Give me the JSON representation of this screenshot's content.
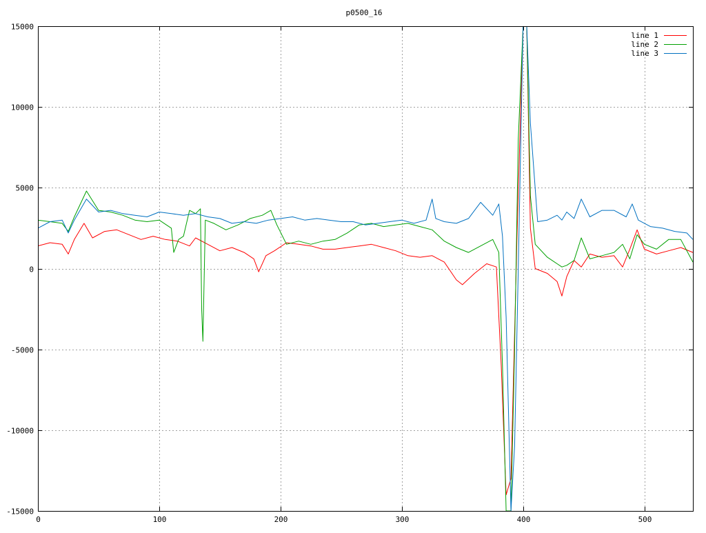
{
  "chart_data": {
    "type": "line",
    "title": "p0500_16",
    "xlabel": "",
    "ylabel": "",
    "xlim": [
      0,
      540
    ],
    "ylim": [
      -15000,
      15000
    ],
    "xticks": [
      "0",
      "100",
      "200",
      "300",
      "400",
      "500"
    ],
    "yticks": [
      "15000",
      "10000",
      "5000",
      "0",
      "-5000",
      "-10000",
      "-15000"
    ],
    "grid": true,
    "legend_position": "top-right",
    "series": [
      {
        "name": "line 1",
        "color": "#ff0000",
        "x": [
          0,
          10,
          20,
          25,
          30,
          38,
          45,
          55,
          65,
          75,
          85,
          95,
          105,
          115,
          125,
          130,
          140,
          150,
          160,
          170,
          178,
          182,
          188,
          195,
          205,
          215,
          225,
          235,
          245,
          255,
          265,
          275,
          285,
          295,
          305,
          315,
          325,
          335,
          345,
          350,
          360,
          370,
          378,
          382,
          386,
          390,
          395,
          400,
          403,
          406,
          410,
          420,
          428,
          432,
          436,
          442,
          448,
          455,
          465,
          475,
          482,
          488,
          494,
          500,
          510,
          520,
          530,
          540
        ],
        "y": [
          1400,
          1600,
          1500,
          900,
          1800,
          2800,
          1900,
          2300,
          2400,
          2100,
          1800,
          2000,
          1800,
          1700,
          1400,
          1900,
          1500,
          1100,
          1300,
          1000,
          600,
          -200,
          800,
          1100,
          1600,
          1500,
          1400,
          1200,
          1200,
          1300,
          1400,
          1500,
          1300,
          1100,
          800,
          700,
          800,
          400,
          -700,
          -1000,
          -300,
          300,
          100,
          -6000,
          -14000,
          -13000,
          2000,
          15000,
          15000,
          2500,
          0,
          -300,
          -800,
          -1700,
          -500,
          500,
          100,
          900,
          700,
          800,
          100,
          1200,
          2400,
          1200,
          900,
          1100,
          1300,
          1000
        ]
      },
      {
        "name": "line 2",
        "color": "#00a000",
        "x": [
          0,
          10,
          20,
          25,
          30,
          40,
          50,
          60,
          70,
          80,
          90,
          100,
          110,
          112,
          116,
          120,
          125,
          130,
          134,
          135,
          136,
          138,
          145,
          155,
          165,
          175,
          185,
          192,
          197,
          205,
          215,
          225,
          235,
          245,
          255,
          265,
          275,
          285,
          295,
          305,
          315,
          325,
          335,
          345,
          355,
          365,
          375,
          380,
          383,
          386,
          390,
          393,
          396,
          400,
          403,
          406,
          410,
          420,
          428,
          432,
          436,
          442,
          448,
          455,
          465,
          475,
          482,
          488,
          494,
          500,
          510,
          520,
          530,
          540
        ],
        "y": [
          3000,
          2900,
          2800,
          2300,
          3200,
          4800,
          3600,
          3500,
          3300,
          3000,
          2900,
          3000,
          2500,
          1000,
          1800,
          2000,
          3600,
          3400,
          3700,
          -2500,
          -4500,
          3000,
          2800,
          2400,
          2700,
          3100,
          3300,
          3600,
          2700,
          1500,
          1700,
          1500,
          1700,
          1800,
          2200,
          2700,
          2800,
          2600,
          2700,
          2800,
          2600,
          2400,
          1700,
          1300,
          1000,
          1400,
          1800,
          1000,
          -6000,
          -15000,
          -15000,
          -5000,
          8000,
          15000,
          15000,
          4500,
          1500,
          700,
          300,
          100,
          200,
          500,
          1900,
          600,
          800,
          1000,
          1500,
          600,
          2100,
          1500,
          1200,
          1800,
          1800,
          400
        ]
      },
      {
        "name": "line 3",
        "color": "#0070c0",
        "x": [
          0,
          10,
          20,
          25,
          30,
          40,
          50,
          60,
          70,
          80,
          90,
          100,
          110,
          120,
          130,
          140,
          150,
          160,
          170,
          180,
          190,
          200,
          210,
          220,
          230,
          240,
          250,
          260,
          270,
          280,
          290,
          300,
          310,
          320,
          325,
          328,
          335,
          345,
          355,
          365,
          375,
          380,
          383,
          386,
          390,
          393,
          396,
          400,
          403,
          406,
          412,
          420,
          428,
          432,
          436,
          442,
          448,
          455,
          465,
          475,
          485,
          490,
          495,
          505,
          515,
          525,
          535,
          540
        ],
        "y": [
          2500,
          2900,
          3000,
          2200,
          3000,
          4300,
          3500,
          3600,
          3400,
          3300,
          3200,
          3500,
          3400,
          3300,
          3400,
          3200,
          3100,
          2800,
          2900,
          2800,
          3000,
          3100,
          3200,
          3000,
          3100,
          3000,
          2900,
          2900,
          2700,
          2800,
          2900,
          3000,
          2800,
          3000,
          4300,
          3100,
          2900,
          2800,
          3100,
          4100,
          3300,
          4000,
          2000,
          -3000,
          -15000,
          -11000,
          0,
          15000,
          15000,
          9000,
          2900,
          3000,
          3300,
          3000,
          3500,
          3100,
          4300,
          3200,
          3600,
          3600,
          3200,
          4000,
          3000,
          2600,
          2500,
          2300,
          2200,
          1800
        ]
      }
    ]
  }
}
